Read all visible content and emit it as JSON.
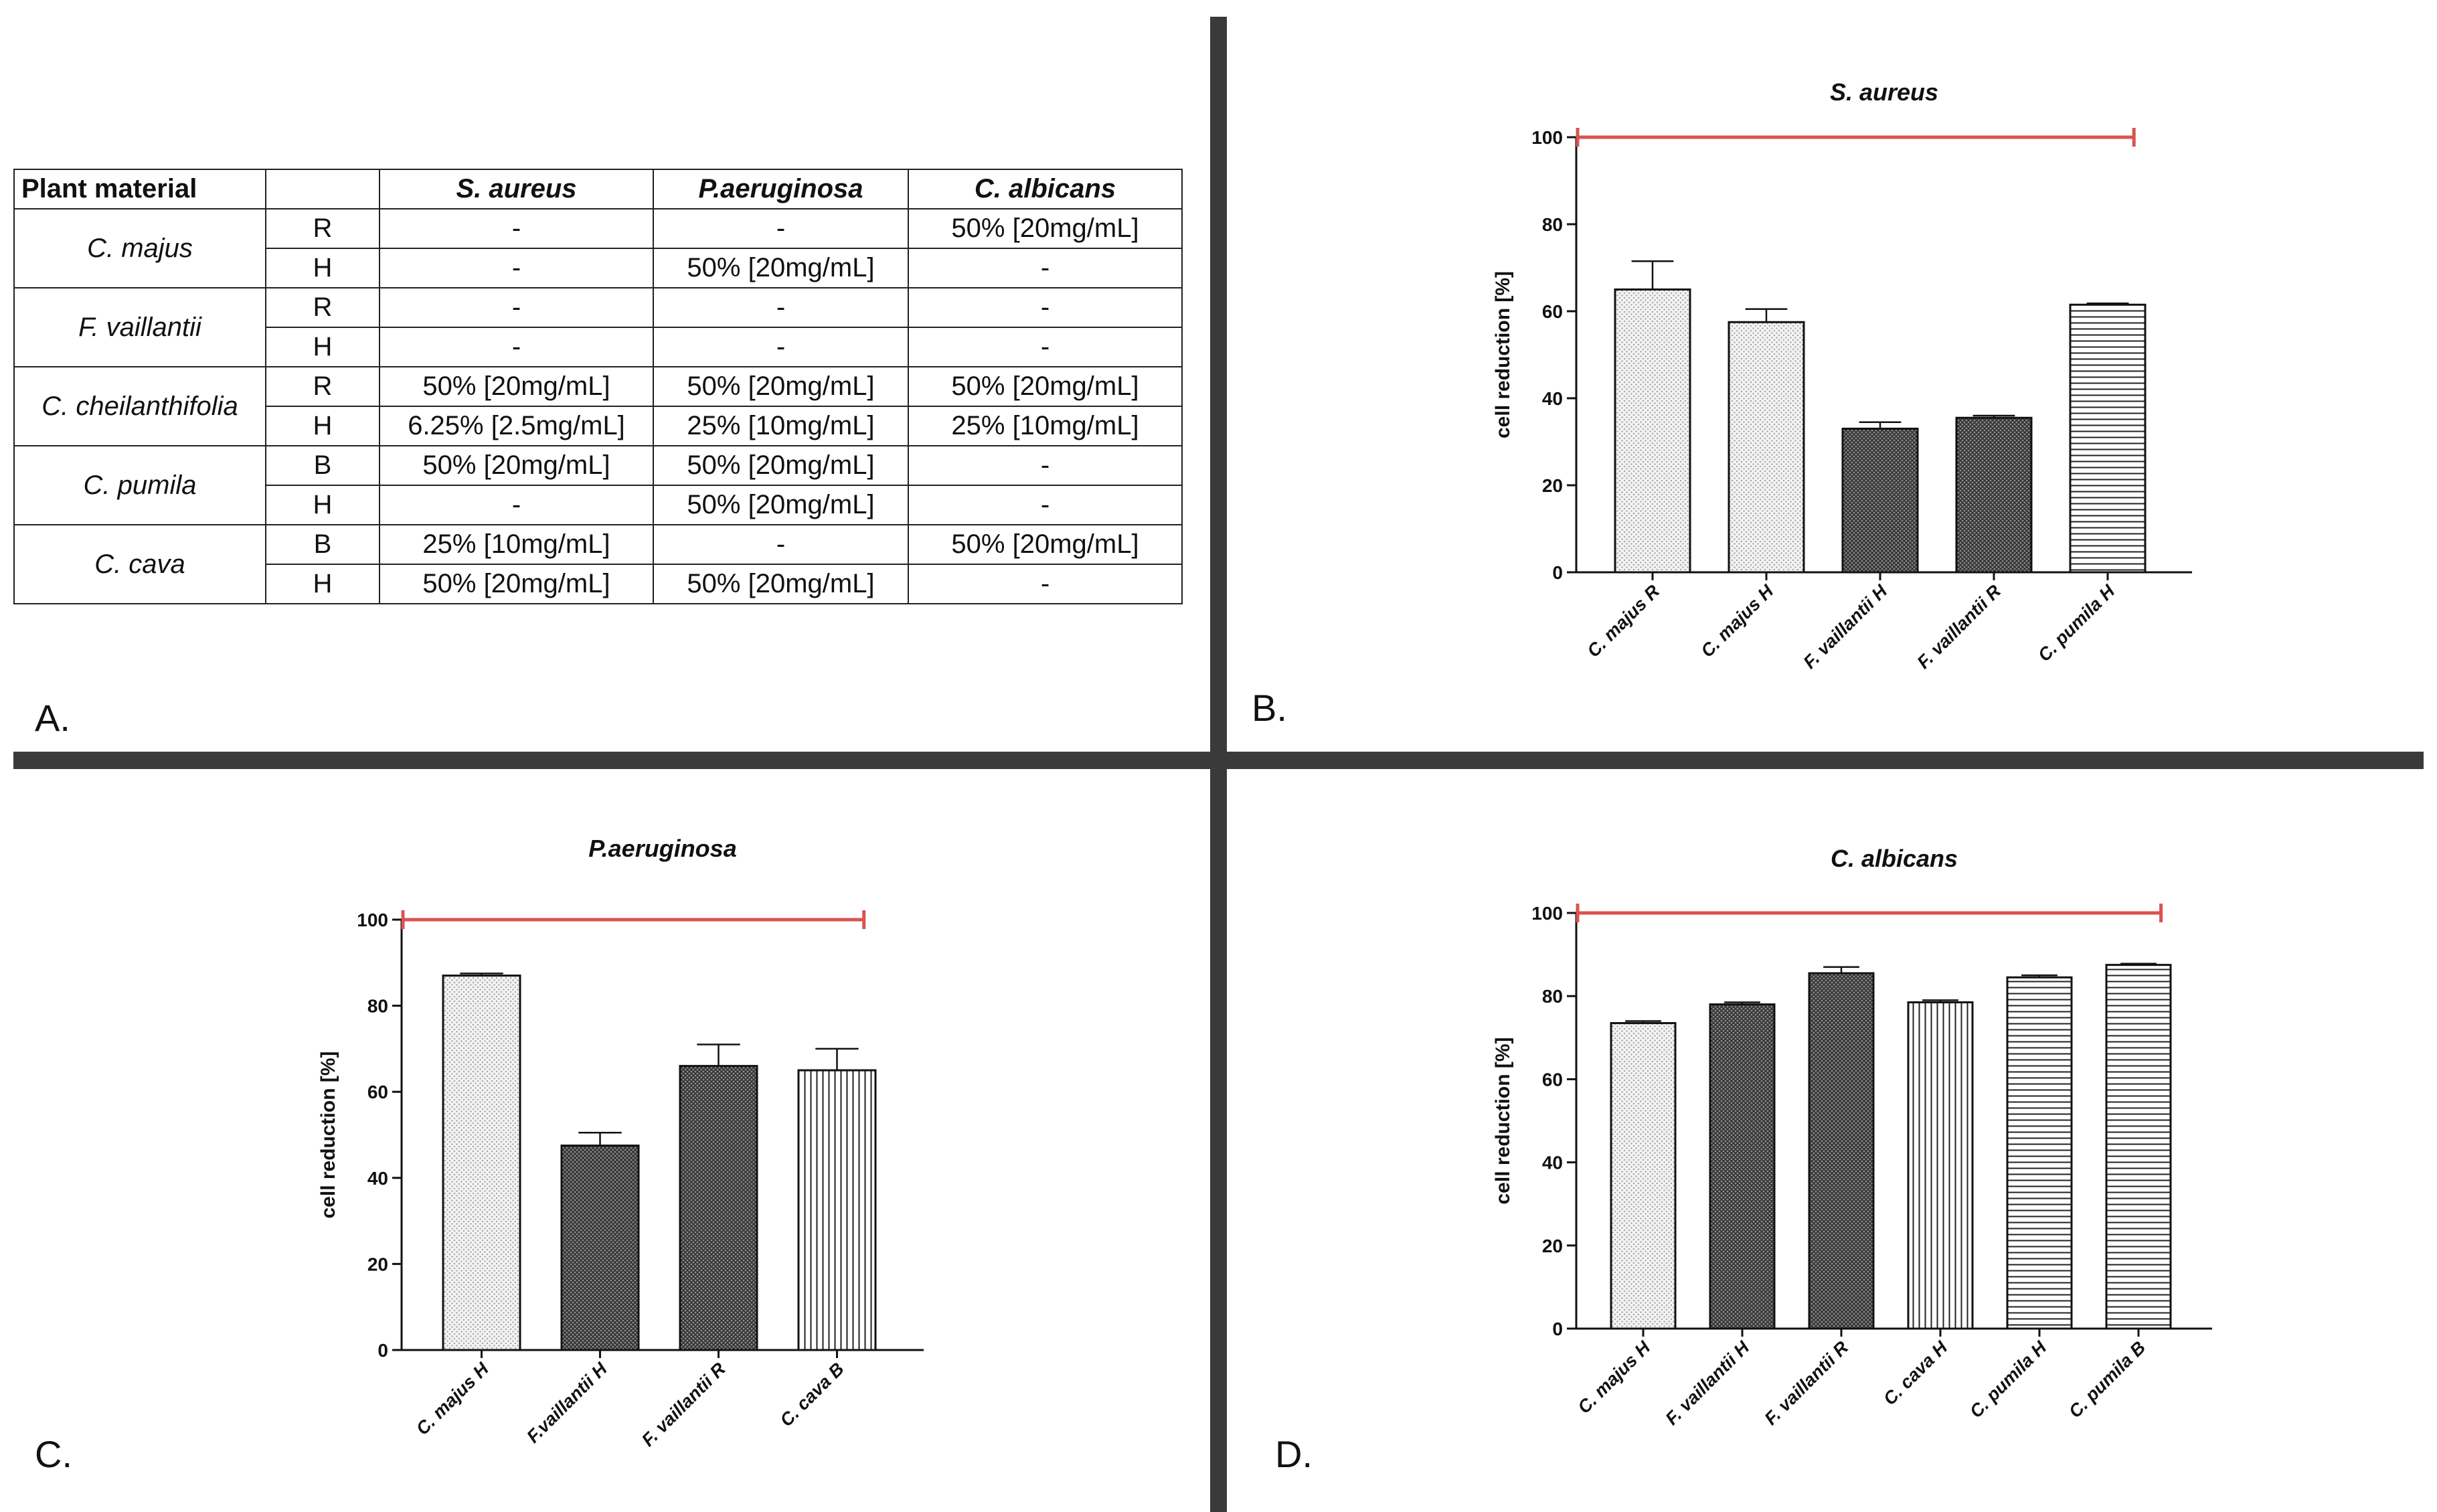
{
  "panel_letters": {
    "a": "A.",
    "b": "B.",
    "c": "C.",
    "d": "D."
  },
  "table": {
    "headers": [
      "Plant material",
      "",
      "S. aureus",
      "P.aeruginosa",
      "C. albicans"
    ],
    "groups": [
      {
        "plant": "C. majus",
        "rows": [
          {
            "part": "R",
            "values": [
              "-",
              "-",
              "50% [20mg/mL]"
            ]
          },
          {
            "part": "H",
            "values": [
              "-",
              "50% [20mg/mL]",
              "-"
            ]
          }
        ]
      },
      {
        "plant": "F. vaillantii",
        "rows": [
          {
            "part": "R",
            "values": [
              "-",
              "-",
              "-"
            ]
          },
          {
            "part": "H",
            "values": [
              "-",
              "-",
              "-"
            ]
          }
        ]
      },
      {
        "plant": "C. cheilanthifolia",
        "rows": [
          {
            "part": "R",
            "values": [
              "50% [20mg/mL]",
              "50% [20mg/mL]",
              "50% [20mg/mL]"
            ]
          },
          {
            "part": "H",
            "values": [
              "6.25% [2.5mg/mL]",
              "25% [10mg/mL]",
              "25% [10mg/mL]"
            ]
          }
        ]
      },
      {
        "plant": "C. pumila",
        "rows": [
          {
            "part": "B",
            "values": [
              "50% [20mg/mL]",
              "50% [20mg/mL]",
              "-"
            ]
          },
          {
            "part": "H",
            "values": [
              "-",
              "50% [20mg/mL]",
              "-"
            ]
          }
        ]
      },
      {
        "plant": "C. cava",
        "rows": [
          {
            "part": "B",
            "values": [
              "25% [10mg/mL]",
              "-",
              "50% [20mg/mL]"
            ]
          },
          {
            "part": "H",
            "values": [
              "50% [20mg/mL]",
              "50% [20mg/mL]",
              "-"
            ]
          }
        ]
      }
    ]
  },
  "chart_data": [
    {
      "panel": "B",
      "type": "bar",
      "title": "S. aureus",
      "xlabel": "",
      "ylabel": "cell reduction [%]",
      "ylim": [
        0,
        100
      ],
      "yticks": [
        0,
        20,
        40,
        60,
        80,
        100
      ],
      "categories": [
        "C. majus R",
        "C. majus H",
        "F. vaillantii H",
        "F. vaillantii R",
        "C. pumila H"
      ],
      "values": [
        65,
        57.5,
        33,
        35.5,
        61.5
      ],
      "errors": [
        6.5,
        3,
        1.5,
        0.5,
        0.3
      ],
      "patterns": [
        "dots",
        "dots",
        "crosshatch",
        "crosshatch",
        "horizontal"
      ],
      "reference_line": {
        "value": 100,
        "color": "#d9534f"
      }
    },
    {
      "panel": "C",
      "type": "bar",
      "title": "P.aeruginosa",
      "xlabel": "",
      "ylabel": "cell reduction [%]",
      "ylim": [
        0,
        100
      ],
      "yticks": [
        0,
        20,
        40,
        60,
        80,
        100
      ],
      "categories": [
        "C. majus H",
        "F.vaillantii H",
        "F. vaillantii R",
        "C. cava B"
      ],
      "values": [
        87,
        47.5,
        66,
        65
      ],
      "errors": [
        0.5,
        3,
        5,
        5
      ],
      "patterns": [
        "dots",
        "crosshatch",
        "crosshatch",
        "vertical"
      ],
      "reference_line": {
        "value": 100,
        "color": "#d9534f"
      }
    },
    {
      "panel": "D",
      "type": "bar",
      "title": "C. albicans",
      "xlabel": "",
      "ylabel": "cell reduction [%]",
      "ylim": [
        0,
        100
      ],
      "yticks": [
        0,
        20,
        40,
        60,
        80,
        100
      ],
      "categories": [
        "C. majus H",
        "F. vaillantii H",
        "F. vaillantii R",
        "C. cava H",
        "C. pumila H",
        "C. pumila B"
      ],
      "values": [
        73.5,
        78,
        85.5,
        78.5,
        84.5,
        87.5
      ],
      "errors": [
        0.5,
        0.5,
        1.5,
        0.5,
        0.5,
        0.3
      ],
      "patterns": [
        "dots",
        "crosshatch",
        "crosshatch",
        "vertical",
        "horizontal",
        "horizontal"
      ],
      "reference_line": {
        "value": 100,
        "color": "#d9534f"
      }
    }
  ]
}
